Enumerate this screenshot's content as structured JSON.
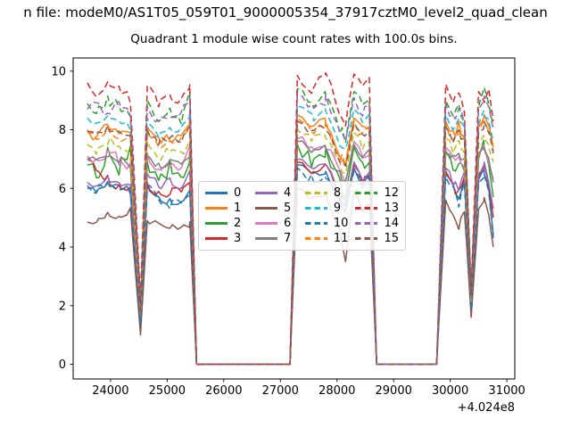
{
  "figure": {
    "suptitle": "n file: modeM0/AS1T05_059T01_9000005354_37917cztM0_level2_quad_clean",
    "background": "#ffffff"
  },
  "chart_data": {
    "type": "line",
    "title": "Quadrant 1 module wise count rates with 100.0s bins.",
    "xlabel": "",
    "ylabel": "",
    "x_offset_text": "+4.024e8",
    "x_ticks": [
      24000,
      25000,
      26000,
      27000,
      28000,
      29000,
      30000,
      31000
    ],
    "y_ticks": [
      0,
      2,
      4,
      6,
      8,
      10
    ],
    "xlim": [
      23340,
      31140
    ],
    "ylim": [
      -0.5,
      10.45
    ],
    "grid": false,
    "legend_columns": 4,
    "bin_seconds": "100.0",
    "sample_step": 100,
    "x_control": [
      23590,
      23750,
      23950,
      24150,
      24350,
      24530,
      24650,
      24850,
      25050,
      25250,
      25400,
      25520,
      27170,
      27300,
      27550,
      27800,
      28050,
      28150,
      28300,
      28450,
      28570,
      28700,
      29760,
      29920,
      30050,
      30150,
      30250,
      30370,
      30500,
      30600,
      30680,
      30760
    ],
    "series": [
      {
        "name": "0",
        "color": "#1f77b4",
        "dashed": false,
        "jitter": 0.16,
        "values": [
          6.0,
          5.9,
          6.2,
          6.0,
          5.9,
          1.3,
          6.1,
          5.7,
          5.5,
          5.6,
          6.0,
          0,
          0,
          6.8,
          6.4,
          6.6,
          5.6,
          5.3,
          6.7,
          6.2,
          6.4,
          0,
          0,
          6.5,
          6.0,
          5.6,
          6.3,
          1.9,
          6.3,
          6.6,
          6.0,
          4.4
        ]
      },
      {
        "name": "1",
        "color": "#ff7f0e",
        "dashed": false,
        "jitter": 0.22,
        "values": [
          8.0,
          7.8,
          8.3,
          7.9,
          7.7,
          1.8,
          8.1,
          7.6,
          7.8,
          7.7,
          8.2,
          0,
          0,
          8.5,
          8.0,
          8.3,
          7.2,
          6.9,
          8.4,
          7.9,
          8.1,
          0,
          0,
          8.3,
          7.8,
          8.1,
          7.9,
          2.3,
          8.1,
          8.4,
          8.2,
          7.4
        ]
      },
      {
        "name": "2",
        "color": "#2ca02c",
        "dashed": false,
        "jitter": 0.3,
        "values": [
          6.8,
          6.4,
          7.2,
          6.6,
          7.3,
          1.5,
          6.9,
          6.4,
          6.7,
          6.5,
          7.0,
          0,
          0,
          7.5,
          7.0,
          7.3,
          6.1,
          5.8,
          7.4,
          6.9,
          7.1,
          0,
          0,
          7.2,
          6.7,
          7.0,
          6.6,
          2.0,
          7.0,
          7.4,
          6.8,
          5.7
        ]
      },
      {
        "name": "3",
        "color": "#d62728",
        "dashed": false,
        "jitter": 0.2,
        "values": [
          7.0,
          6.6,
          6.3,
          6.1,
          5.9,
          1.3,
          6.2,
          5.8,
          5.9,
          5.8,
          6.2,
          0,
          0,
          6.9,
          6.5,
          6.7,
          5.7,
          5.4,
          6.8,
          6.3,
          6.5,
          0,
          0,
          6.6,
          6.1,
          5.8,
          6.4,
          1.9,
          6.4,
          6.7,
          6.1,
          5.0
        ]
      },
      {
        "name": "4",
        "color": "#9467bd",
        "dashed": false,
        "jitter": 0.16,
        "values": [
          6.2,
          6.0,
          6.3,
          6.1,
          6.0,
          1.4,
          6.5,
          6.1,
          6.2,
          6.1,
          6.5,
          0,
          0,
          7.0,
          6.6,
          6.8,
          5.8,
          5.5,
          6.9,
          6.4,
          6.6,
          0,
          0,
          6.7,
          6.2,
          5.9,
          6.5,
          2.0,
          6.5,
          6.8,
          6.2,
          5.3
        ]
      },
      {
        "name": "5",
        "color": "#8c564b",
        "dashed": false,
        "jitter": 0.12,
        "values": [
          4.85,
          4.9,
          5.1,
          5.0,
          5.3,
          1.0,
          4.9,
          4.8,
          4.7,
          4.6,
          4.8,
          0,
          0,
          6.0,
          5.6,
          5.8,
          4.5,
          3.5,
          5.9,
          5.2,
          5.5,
          0,
          0,
          5.6,
          5.1,
          4.7,
          5.3,
          1.6,
          5.3,
          5.7,
          5.1,
          4.0
        ]
      },
      {
        "name": "6",
        "color": "#e377c2",
        "dashed": false,
        "jitter": 0.22,
        "values": [
          7.1,
          6.8,
          7.3,
          7.0,
          6.7,
          1.6,
          7.2,
          6.7,
          6.9,
          6.8,
          7.3,
          0,
          0,
          7.7,
          7.3,
          7.5,
          6.5,
          6.2,
          7.6,
          7.1,
          7.3,
          0,
          0,
          7.4,
          6.9,
          7.2,
          6.8,
          2.1,
          7.1,
          7.5,
          6.9,
          6.3
        ]
      },
      {
        "name": "7",
        "color": "#7f7f7f",
        "dashed": false,
        "jitter": 0.14,
        "values": [
          7.0,
          6.9,
          7.1,
          7.0,
          6.8,
          1.6,
          7.1,
          6.8,
          6.9,
          6.8,
          7.2,
          0,
          0,
          7.6,
          7.3,
          7.4,
          6.5,
          6.2,
          7.5,
          7.1,
          7.2,
          0,
          0,
          7.3,
          7.0,
          7.2,
          6.9,
          2.1,
          7.2,
          7.4,
          7.0,
          6.2
        ]
      },
      {
        "name": "8",
        "color": "#bcbd22",
        "dashed": true,
        "jitter": 0.18,
        "values": [
          7.5,
          7.3,
          7.6,
          7.4,
          7.2,
          1.7,
          7.6,
          7.1,
          7.3,
          7.2,
          7.7,
          0,
          0,
          8.0,
          7.6,
          7.8,
          6.8,
          6.5,
          7.9,
          7.4,
          7.6,
          0,
          0,
          7.7,
          7.3,
          7.6,
          7.2,
          2.2,
          7.5,
          7.8,
          7.4,
          6.9
        ]
      },
      {
        "name": "9",
        "color": "#17becf",
        "dashed": true,
        "jitter": 0.16,
        "values": [
          8.4,
          8.2,
          8.5,
          8.3,
          8.1,
          1.9,
          8.4,
          7.9,
          8.1,
          8.0,
          8.6,
          0,
          0,
          8.8,
          8.4,
          8.6,
          7.5,
          7.2,
          8.7,
          8.2,
          8.4,
          0,
          0,
          8.5,
          8.0,
          8.3,
          8.1,
          2.4,
          8.2,
          8.6,
          8.3,
          7.6
        ]
      },
      {
        "name": "10",
        "color": "#1f77b4",
        "dashed": true,
        "jitter": 0.18,
        "values": [
          6.1,
          6.0,
          6.15,
          5.95,
          5.85,
          1.35,
          6.0,
          5.6,
          5.4,
          5.5,
          5.9,
          0,
          0,
          6.7,
          6.3,
          6.5,
          5.5,
          5.2,
          6.6,
          6.1,
          6.3,
          0,
          0,
          6.4,
          5.9,
          5.5,
          6.2,
          1.85,
          6.2,
          6.5,
          5.9,
          4.3
        ]
      },
      {
        "name": "11",
        "color": "#ff7f0e",
        "dashed": true,
        "jitter": 0.18,
        "values": [
          7.9,
          7.7,
          8.1,
          7.8,
          7.6,
          1.8,
          8.0,
          7.5,
          7.7,
          7.6,
          8.1,
          0,
          0,
          8.4,
          8.0,
          8.2,
          7.1,
          6.8,
          8.3,
          7.8,
          8.0,
          0,
          0,
          8.2,
          7.7,
          8.0,
          7.8,
          2.3,
          8.0,
          8.3,
          8.1,
          7.3
        ]
      },
      {
        "name": "12",
        "color": "#2ca02c",
        "dashed": true,
        "jitter": 0.2,
        "values": [
          8.9,
          8.6,
          9.0,
          8.8,
          8.5,
          2.0,
          9.0,
          8.3,
          8.6,
          8.4,
          9.3,
          0,
          0,
          9.4,
          8.9,
          9.2,
          8.0,
          7.7,
          9.3,
          8.8,
          9.0,
          0,
          0,
          9.0,
          8.5,
          8.8,
          8.4,
          2.5,
          8.8,
          9.45,
          8.9,
          8.1
        ]
      },
      {
        "name": "13",
        "color": "#d62728",
        "dashed": true,
        "jitter": 0.2,
        "values": [
          9.6,
          9.3,
          9.7,
          9.4,
          9.1,
          2.2,
          9.5,
          8.8,
          9.2,
          9.0,
          9.6,
          0,
          0,
          9.85,
          9.3,
          9.9,
          8.6,
          8.3,
          9.9,
          9.3,
          9.6,
          0,
          0,
          9.55,
          8.9,
          9.4,
          8.6,
          2.6,
          9.3,
          9.0,
          9.4,
          8.3
        ]
      },
      {
        "name": "14",
        "color": "#9467bd",
        "dashed": true,
        "jitter": 0.18,
        "values": [
          8.7,
          8.9,
          8.5,
          8.9,
          8.6,
          2.1,
          8.8,
          8.2,
          8.5,
          8.6,
          9.0,
          0,
          0,
          9.2,
          8.8,
          9.0,
          7.9,
          7.6,
          9.1,
          8.6,
          8.8,
          0,
          0,
          8.9,
          8.4,
          8.7,
          8.3,
          2.5,
          8.7,
          9.1,
          8.8,
          8.0
        ]
      },
      {
        "name": "15",
        "color": "#8c564b",
        "dashed": true,
        "jitter": 0.14,
        "values": [
          7.95,
          7.8,
          8.0,
          7.9,
          7.7,
          1.8,
          8.0,
          7.6,
          7.8,
          7.7,
          8.1,
          0,
          0,
          8.3,
          7.9,
          8.1,
          7.0,
          6.7,
          8.2,
          7.8,
          8.0,
          0,
          0,
          8.1,
          7.6,
          7.9,
          7.7,
          2.3,
          7.9,
          8.2,
          8.0,
          7.2
        ]
      }
    ]
  }
}
